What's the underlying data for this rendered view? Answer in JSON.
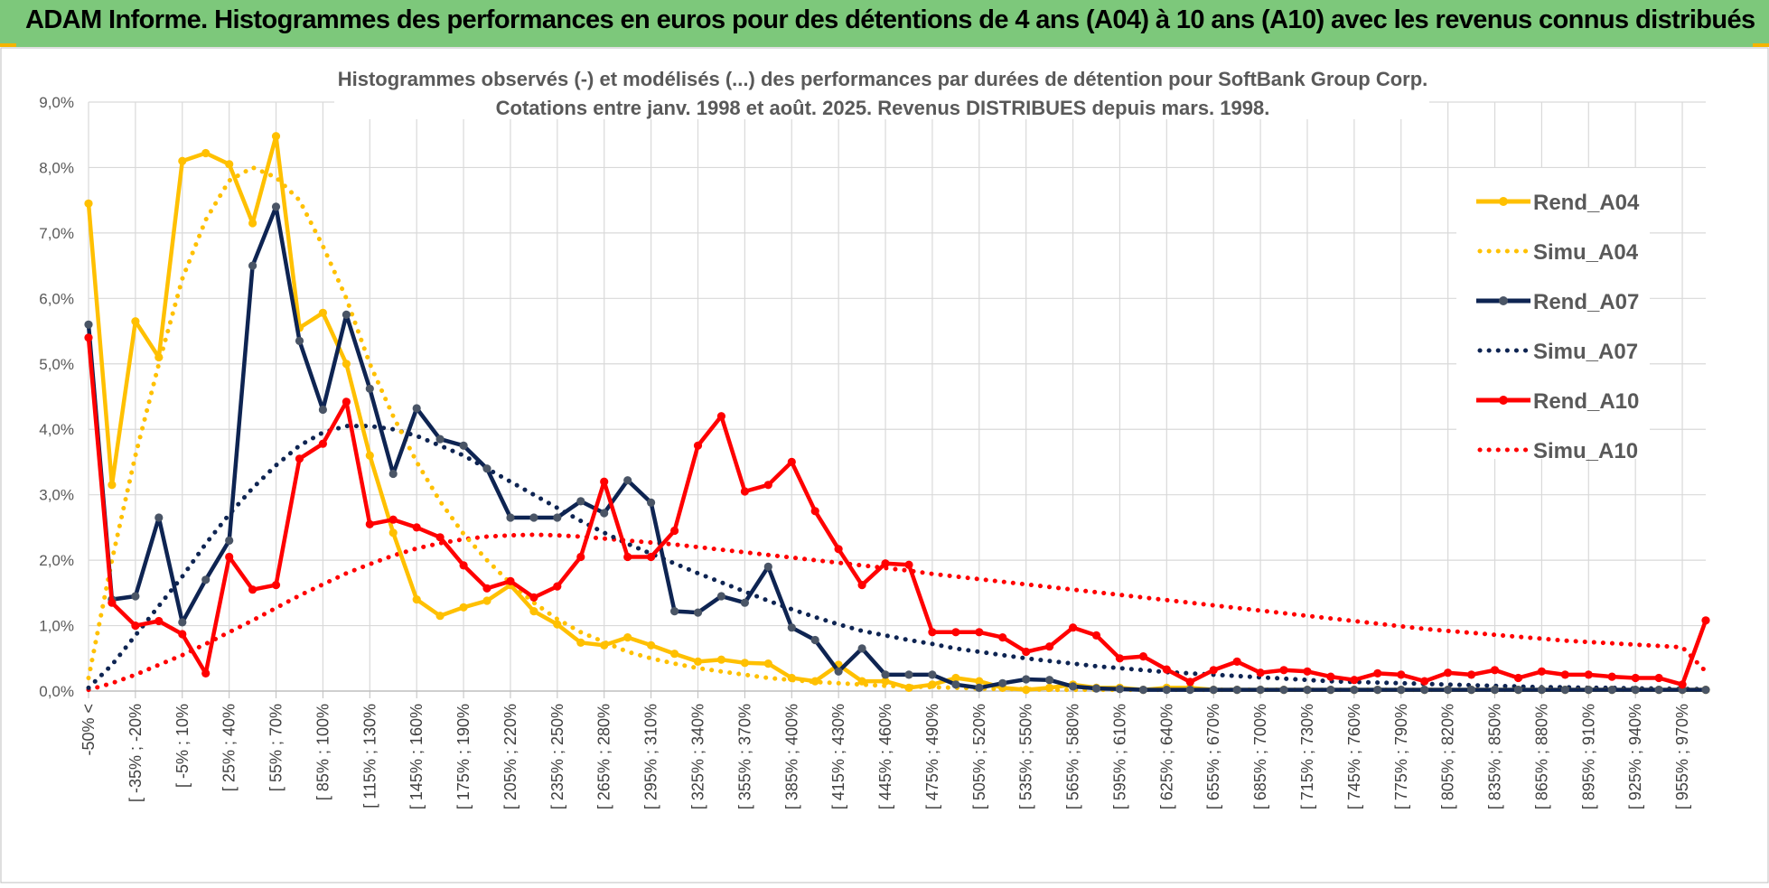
{
  "banner": {
    "title": "ADAM Informe. Histogrammes des performances en euros pour des détentions de 4 ans (A04) à 10 ans (A10) avec les revenus connus distribués"
  },
  "colors": {
    "banner_bg": "#7dc87b",
    "A04": "#ffc000",
    "A07": "#0e2452",
    "A10": "#ff0000",
    "grid": "#d9d9d9"
  },
  "chart_data": {
    "type": "line",
    "title": [
      "Histogrammes observés (-) et modélisés (...) des performances par durées de détention pour SoftBank Group Corp.",
      "Cotations entre janv. 1998 et août. 2025. Revenus DISTRIBUES depuis mars. 1998."
    ],
    "ylim": [
      0,
      9
    ],
    "y_ticks": [
      "0,0%",
      "1,0%",
      "2,0%",
      "3,0%",
      "4,0%",
      "5,0%",
      "6,0%",
      "7,0%",
      "8,0%",
      "9,0%"
    ],
    "x_labels": [
      "-50% <",
      "[ -35% ; -20%",
      "[ -5% ; 10%",
      "[ 25% ; 40%",
      "[ 55% ; 70%",
      "[ 85% ; 100%",
      "[ 115% ; 130%",
      "[ 145% ; 160%",
      "[ 175% ; 190%",
      "[ 205% ; 220%",
      "[ 235% ; 250%",
      "[ 265% ; 280%",
      "[ 295% ; 310%",
      "[ 325% ; 340%",
      "[ 355% ; 370%",
      "[ 385% ; 400%",
      "[ 415% ; 430%",
      "[ 445% ; 460%",
      "[ 475% ; 490%",
      "[ 505% ; 520%",
      "[ 535% ; 550%",
      "[ 565% ; 580%",
      "[ 595% ; 610%",
      "[ 625% ; 640%",
      "[ 655% ; 670%",
      "[ 685% ; 700%",
      "[ 715% ; 730%",
      "[ 745% ; 760%",
      "[ 775% ; 790%",
      "[ 805% ; 820%",
      "[ 835% ; 850%",
      "[ 865% ; 880%",
      "[ 895% ; 910%",
      "[ 925% ; 940%",
      "[ 955% ; 970%"
    ],
    "legend_position": "right",
    "grid": true,
    "series": [
      {
        "name": "Rend_A04",
        "style": "solid",
        "color": "#ffc000",
        "values": [
          7.45,
          3.15,
          5.65,
          5.1,
          8.1,
          8.22,
          8.05,
          7.15,
          8.48,
          5.55,
          5.78,
          5.0,
          3.6,
          2.42,
          1.4,
          1.15,
          1.28,
          1.38,
          1.62,
          1.22,
          1.02,
          0.74,
          0.7,
          0.82,
          0.7,
          0.57,
          0.45,
          0.48,
          0.43,
          0.42,
          0.2,
          0.15,
          0.4,
          0.15,
          0.15,
          0.05,
          0.1,
          0.2,
          0.15,
          0.05,
          0.02,
          0.05,
          0.1,
          0.05,
          0.05,
          0.02,
          0.05,
          0.05,
          0.02,
          0.02,
          0.02,
          0.02,
          0.02,
          0.02,
          0.02,
          0.02,
          0.02,
          0.02,
          0.02,
          0.02,
          0.02,
          0.02,
          0.02,
          0.02,
          0.02,
          0.02,
          0.02,
          0.02,
          0.02,
          0.02
        ]
      },
      {
        "name": "Simu_A04",
        "style": "dotted",
        "color": "#ffc000",
        "values": [
          0.2,
          2.0,
          3.6,
          5.0,
          6.3,
          7.2,
          7.8,
          8.0,
          7.85,
          7.5,
          6.8,
          6.0,
          5.0,
          4.2,
          3.5,
          2.9,
          2.4,
          2.0,
          1.65,
          1.35,
          1.1,
          0.9,
          0.75,
          0.6,
          0.5,
          0.42,
          0.35,
          0.3,
          0.25,
          0.2,
          0.17,
          0.14,
          0.12,
          0.1,
          0.08,
          0.07,
          0.06,
          0.05,
          0.04,
          0.03,
          0.03,
          0.02,
          0.02,
          0.02,
          0.02,
          0.02,
          0.02,
          0.02,
          0.02,
          0.02,
          0.02,
          0.02,
          0.02,
          0.02,
          0.02,
          0.02,
          0.02,
          0.02,
          0.02,
          0.02,
          0.02,
          0.02,
          0.02,
          0.02,
          0.02,
          0.02,
          0.02,
          0.02,
          0.02,
          0.02
        ]
      },
      {
        "name": "Rend_A07",
        "style": "solid",
        "color": "#0e2452",
        "values": [
          5.6,
          1.4,
          1.45,
          2.65,
          1.05,
          1.7,
          2.3,
          6.5,
          7.4,
          5.35,
          4.3,
          5.75,
          4.62,
          3.32,
          4.32,
          3.85,
          3.75,
          3.4,
          2.65,
          2.65,
          2.65,
          2.9,
          2.72,
          3.22,
          2.88,
          1.22,
          1.2,
          1.45,
          1.35,
          1.9,
          0.97,
          0.78,
          0.3,
          0.65,
          0.25,
          0.25,
          0.25,
          0.1,
          0.05,
          0.12,
          0.18,
          0.17,
          0.07,
          0.04,
          0.03,
          0.02,
          0.02,
          0.02,
          0.02,
          0.02,
          0.02,
          0.02,
          0.02,
          0.02,
          0.02,
          0.02,
          0.02,
          0.02,
          0.02,
          0.02,
          0.02,
          0.02,
          0.02,
          0.02,
          0.02,
          0.02,
          0.02,
          0.02,
          0.02,
          0.02
        ]
      },
      {
        "name": "Simu_A07",
        "style": "dotted",
        "color": "#0e2452",
        "values": [
          0.05,
          0.4,
          0.85,
          1.3,
          1.75,
          2.25,
          2.7,
          3.1,
          3.45,
          3.75,
          3.95,
          4.05,
          4.05,
          4.0,
          3.9,
          3.75,
          3.6,
          3.4,
          3.2,
          3.0,
          2.8,
          2.6,
          2.42,
          2.25,
          2.1,
          1.95,
          1.8,
          1.66,
          1.52,
          1.38,
          1.25,
          1.13,
          1.02,
          0.92,
          0.85,
          0.78,
          0.72,
          0.65,
          0.6,
          0.55,
          0.5,
          0.46,
          0.42,
          0.38,
          0.35,
          0.32,
          0.29,
          0.27,
          0.25,
          0.23,
          0.21,
          0.19,
          0.17,
          0.15,
          0.14,
          0.13,
          0.12,
          0.11,
          0.1,
          0.09,
          0.08,
          0.07,
          0.06,
          0.06,
          0.05,
          0.05,
          0.04,
          0.04,
          0.03,
          0.03
        ]
      },
      {
        "name": "Rend_A10",
        "style": "solid",
        "color": "#ff0000",
        "values": [
          5.4,
          1.35,
          1.0,
          1.07,
          0.87,
          0.27,
          2.05,
          1.55,
          1.62,
          3.55,
          3.78,
          4.42,
          2.55,
          2.62,
          2.5,
          2.35,
          1.92,
          1.57,
          1.68,
          1.43,
          1.6,
          2.05,
          3.2,
          2.05,
          2.05,
          2.45,
          3.75,
          4.2,
          3.05,
          3.15,
          3.5,
          2.75,
          2.17,
          1.62,
          1.95,
          1.93,
          0.9,
          0.9,
          0.9,
          0.82,
          0.6,
          0.68,
          0.97,
          0.85,
          0.5,
          0.53,
          0.33,
          0.14,
          0.32,
          0.45,
          0.28,
          0.32,
          0.3,
          0.22,
          0.17,
          0.27,
          0.25,
          0.15,
          0.28,
          0.25,
          0.32,
          0.2,
          0.3,
          0.25,
          0.25,
          0.22,
          0.2,
          0.2,
          0.1,
          1.08
        ]
      },
      {
        "name": "Simu_A10",
        "style": "dotted",
        "color": "#ff0000",
        "values": [
          0.02,
          0.12,
          0.25,
          0.4,
          0.55,
          0.72,
          0.9,
          1.08,
          1.27,
          1.46,
          1.63,
          1.8,
          1.94,
          2.07,
          2.18,
          2.26,
          2.32,
          2.36,
          2.38,
          2.39,
          2.38,
          2.36,
          2.33,
          2.3,
          2.27,
          2.24,
          2.2,
          2.16,
          2.12,
          2.08,
          2.04,
          2.0,
          1.96,
          1.92,
          1.88,
          1.84,
          1.79,
          1.75,
          1.71,
          1.67,
          1.63,
          1.59,
          1.55,
          1.51,
          1.47,
          1.43,
          1.39,
          1.35,
          1.31,
          1.27,
          1.23,
          1.19,
          1.15,
          1.11,
          1.07,
          1.03,
          0.99,
          0.95,
          0.92,
          0.89,
          0.86,
          0.83,
          0.8,
          0.77,
          0.75,
          0.73,
          0.71,
          0.69,
          0.67,
          0.3
        ]
      }
    ]
  }
}
